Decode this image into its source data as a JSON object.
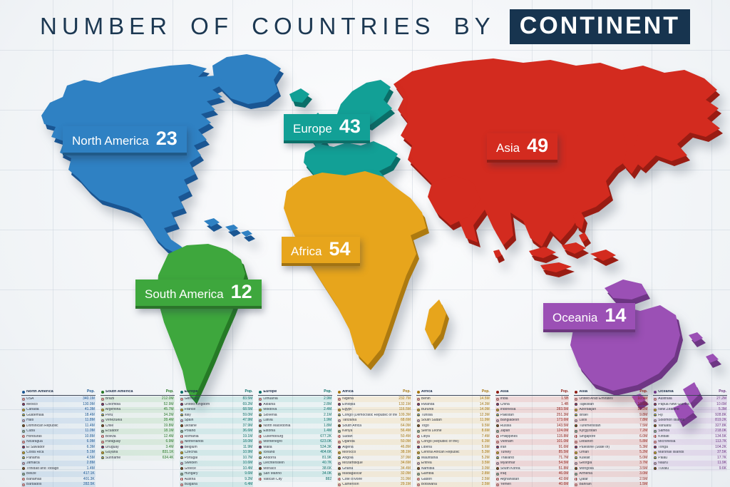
{
  "title": {
    "prefix": "NUMBER OF COUNTRIES BY",
    "highlight": "CONTINENT"
  },
  "map_labels": [
    {
      "name": "North America",
      "count": "23",
      "color": "#2f81c3"
    },
    {
      "name": "Europe",
      "count": "43",
      "color": "#12a096"
    },
    {
      "name": "Asia",
      "count": "49",
      "color": "#d32b1f"
    },
    {
      "name": "Africa",
      "count": "54",
      "color": "#e7a51c"
    },
    {
      "name": "South America",
      "count": "12",
      "color": "#3ea73d"
    },
    {
      "name": "Oceania",
      "count": "14",
      "color": "#9b50b5"
    }
  ],
  "chart_data": {
    "type": "table",
    "title": "NUMBER OF COUNTRIES BY CONTINENT",
    "categories": [
      "North America",
      "South America",
      "Europe",
      "Africa",
      "Asia",
      "Oceania"
    ],
    "values": [
      23,
      12,
      43,
      54,
      49,
      14
    ],
    "legend_position": "on-map",
    "colors": [
      "#2f81c3",
      "#3ea73d",
      "#12a096",
      "#e7a51c",
      "#d32b1f",
      "#9b50b5"
    ]
  },
  "tables": [
    {
      "continent": "North America",
      "pop_label": "Pop.",
      "color": "#2f81c3",
      "dark": "#1a5693",
      "rows": [
        [
          "USA",
          "340.1M"
        ],
        [
          "Mexico",
          "130.9M"
        ],
        [
          "Canada",
          "41.3M"
        ],
        [
          "Guatemala",
          "18.4M"
        ],
        [
          "Haiti",
          "11.8M"
        ],
        [
          "Dominican Republic",
          "11.4M"
        ],
        [
          "Cuba",
          "11.0M"
        ],
        [
          "Honduras",
          "10.8M"
        ],
        [
          "Nicaragua",
          "6.9M"
        ],
        [
          "El Salvador",
          "6.3M"
        ],
        [
          "Costa Rica",
          "5.1M"
        ],
        [
          "Panama",
          "4.5M"
        ],
        [
          "Jamaica",
          "2.8M"
        ],
        [
          "Trinidad and Tobago",
          "1.4M"
        ],
        [
          "Belize",
          "417.1K"
        ],
        [
          "Bahamas",
          "401.3K"
        ],
        [
          "Barbados",
          "282.5K"
        ]
      ]
    },
    {
      "continent": "South America",
      "pop_label": "Pop.",
      "color": "#3ea73d",
      "dark": "#267725",
      "rows": [
        [
          "Brazil",
          "212.0M"
        ],
        [
          "Colombia",
          "52.9M"
        ],
        [
          "Argentina",
          "45.7M"
        ],
        [
          "Peru",
          "34.2M"
        ],
        [
          "Venezuela",
          "28.4M"
        ],
        [
          "Chile",
          "19.8M"
        ],
        [
          "Ecuador",
          "18.1M"
        ],
        [
          "Bolivia",
          "12.4M"
        ],
        [
          "Paraguay",
          "6.9M"
        ],
        [
          "Uruguay",
          "3.4M"
        ],
        [
          "Guyana",
          "831.1K"
        ],
        [
          "Suriname",
          "634.4K"
        ]
      ]
    },
    {
      "continent": "Europe",
      "pop_label": "Pop.",
      "color": "#12a096",
      "dark": "#0a6e68",
      "rows": [
        [
          "Germany",
          "83.5M"
        ],
        [
          "United Kingdom",
          "69.2M"
        ],
        [
          "France",
          "68.5M"
        ],
        [
          "Italy",
          "59.0M"
        ],
        [
          "Spain",
          "47.9M"
        ],
        [
          "Ukraine",
          "37.9M"
        ],
        [
          "Poland",
          "36.6M"
        ],
        [
          "Romania",
          "19.1M"
        ],
        [
          "Netherlands",
          "18.0M"
        ],
        [
          "Belgium",
          "11.9M"
        ],
        [
          "Czechia",
          "10.9M"
        ],
        [
          "Portugal",
          "10.7M"
        ],
        [
          "Sweden",
          "10.6M"
        ],
        [
          "Greece",
          "10.4M"
        ],
        [
          "Hungary",
          "9.6M"
        ],
        [
          "Austria",
          "9.2M"
        ],
        [
          "Bulgaria",
          "6.4M"
        ]
      ]
    },
    {
      "continent": "Europe",
      "pop_label": "Pop.",
      "color": "#12a096",
      "dark": "#0a6e68",
      "rows": [
        [
          "Lithuania",
          "2.9M"
        ],
        [
          "Albania",
          "2.8M"
        ],
        [
          "Moldova",
          "2.4M"
        ],
        [
          "Slovenia",
          "2.1M"
        ],
        [
          "Latvia",
          "1.9M"
        ],
        [
          "North Macedonia",
          "1.8M"
        ],
        [
          "Estonia",
          "1.4M"
        ],
        [
          "Luxembourg",
          "677.2K"
        ],
        [
          "Montenegro",
          "623.0K"
        ],
        [
          "Malta",
          "534.3K"
        ],
        [
          "Iceland",
          "404.6K"
        ],
        [
          "Andorra",
          "81.9K"
        ],
        [
          "Liechtenstein",
          "40.7K"
        ],
        [
          "Monaco",
          "38.6K"
        ],
        [
          "San Marino",
          "34.0K"
        ],
        [
          "Vatican City",
          "882"
        ]
      ]
    },
    {
      "continent": "Africa",
      "pop_label": "Pop.",
      "color": "#e7a51c",
      "dark": "#a5760f",
      "rows": [
        [
          "Nigeria",
          "232.7M"
        ],
        [
          "Ethiopia",
          "132.1M"
        ],
        [
          "Egypt",
          "116.5M"
        ],
        [
          "Congo (Democratic Republic of the)",
          "109.3M"
        ],
        [
          "Tanzania",
          "68.6M"
        ],
        [
          "South Africa",
          "64.0M"
        ],
        [
          "Kenya",
          "56.4M"
        ],
        [
          "Sudan",
          "50.4M"
        ],
        [
          "Uganda",
          "50.0M"
        ],
        [
          "Algeria",
          "46.8M"
        ],
        [
          "Morocco",
          "38.1M"
        ],
        [
          "Angola",
          "37.9M"
        ],
        [
          "Mozambique",
          "34.6M"
        ],
        [
          "Ghana",
          "34.4M"
        ],
        [
          "Madagascar",
          "32.0M"
        ],
        [
          "Côte d'Ivoire",
          "31.9M"
        ],
        [
          "Cameroon",
          "29.1M"
        ]
      ]
    },
    {
      "continent": "Africa",
      "pop_label": "Pop.",
      "color": "#e7a51c",
      "dark": "#a5760f",
      "rows": [
        [
          "Benin",
          "14.5M"
        ],
        [
          "Rwanda",
          "14.3M"
        ],
        [
          "Burundi",
          "14.0M"
        ],
        [
          "Tunisia",
          "12.3M"
        ],
        [
          "South Sudan",
          "11.9M"
        ],
        [
          "Togo",
          "9.5M"
        ],
        [
          "Sierra Leone",
          "8.6M"
        ],
        [
          "Libya",
          "7.4M"
        ],
        [
          "Congo (Republic of the)",
          "6.3M"
        ],
        [
          "Liberia",
          "5.6M"
        ],
        [
          "Central African Republic",
          "5.3M"
        ],
        [
          "Mauritania",
          "5.2M"
        ],
        [
          "Eritrea",
          "3.5M"
        ],
        [
          "Namibia",
          "3.0M"
        ],
        [
          "Gambia",
          "2.8M"
        ],
        [
          "Gabon",
          "2.5M"
        ],
        [
          "Botswana",
          "2.5M"
        ]
      ]
    },
    {
      "continent": "Asia",
      "pop_label": "Pop.",
      "color": "#d32b1f",
      "dark": "#8f1d15",
      "rows": [
        [
          "India",
          "1.5B"
        ],
        [
          "China",
          "1.4B"
        ],
        [
          "Indonesia",
          "283.5M"
        ],
        [
          "Pakistan",
          "251.3M"
        ],
        [
          "Bangladesh",
          "173.6M"
        ],
        [
          "Russia",
          "143.5M"
        ],
        [
          "Japan",
          "124.0M"
        ],
        [
          "Philippines",
          "115.8M"
        ],
        [
          "Vietnam",
          "101.0M"
        ],
        [
          "Iran",
          "91.6M"
        ],
        [
          "Turkey",
          "85.5M"
        ],
        [
          "Thailand",
          "71.7M"
        ],
        [
          "Myanmar",
          "54.5M"
        ],
        [
          "South Korea",
          "51.8M"
        ],
        [
          "Iraq",
          "46.0M"
        ],
        [
          "Afghanistan",
          "42.6M"
        ],
        [
          "Yemen",
          "40.6M"
        ]
      ]
    },
    {
      "continent": "Asia",
      "pop_label": "Pop.",
      "color": "#d32b1f",
      "dark": "#8f1d15",
      "rows": [
        [
          "United Arab Emirates",
          "10.9M"
        ],
        [
          "Tajikistan",
          "10.6M"
        ],
        [
          "Azerbaijan",
          "10.2M"
        ],
        [
          "Israel",
          "9.8M"
        ],
        [
          "Laos",
          "7.8M"
        ],
        [
          "Turkmenistan",
          "7.5M"
        ],
        [
          "Kyrgyzstan",
          "7.2M"
        ],
        [
          "Singapore",
          "6.0M"
        ],
        [
          "Lebanon",
          "5.8M"
        ],
        [
          "Palestine (State of)",
          "5.3M"
        ],
        [
          "Oman",
          "5.2M"
        ],
        [
          "Kuwait",
          "5.0M"
        ],
        [
          "Georgia",
          "3.7M"
        ],
        [
          "Mongolia",
          "3.5M"
        ],
        [
          "Armenia",
          "3.0M"
        ],
        [
          "Qatar",
          "2.5M"
        ],
        [
          "Bahrain",
          "1.5M"
        ]
      ]
    },
    {
      "continent": "Oceania",
      "pop_label": "Pop.",
      "color": "#9b50b5",
      "dark": "#6e3684",
      "rows": [
        [
          "Australia",
          "27.2M"
        ],
        [
          "Papua New Guinea",
          "10.6M"
        ],
        [
          "New Zealand",
          "5.3M"
        ],
        [
          "Fiji",
          "928.8K"
        ],
        [
          "Solomon Islands",
          "819.2K"
        ],
        [
          "Vanuatu",
          "327.8K"
        ],
        [
          "Samoa",
          "218.0K"
        ],
        [
          "Kiribati",
          "134.5K"
        ],
        [
          "Micronesia",
          "113.7K"
        ],
        [
          "Tonga",
          "104.2K"
        ],
        [
          "Marshall Islands",
          "37.5K"
        ],
        [
          "Palau",
          "17.7K"
        ],
        [
          "Nauru",
          "11.9K"
        ],
        [
          "Tuvalu",
          "9.6K"
        ]
      ]
    }
  ]
}
